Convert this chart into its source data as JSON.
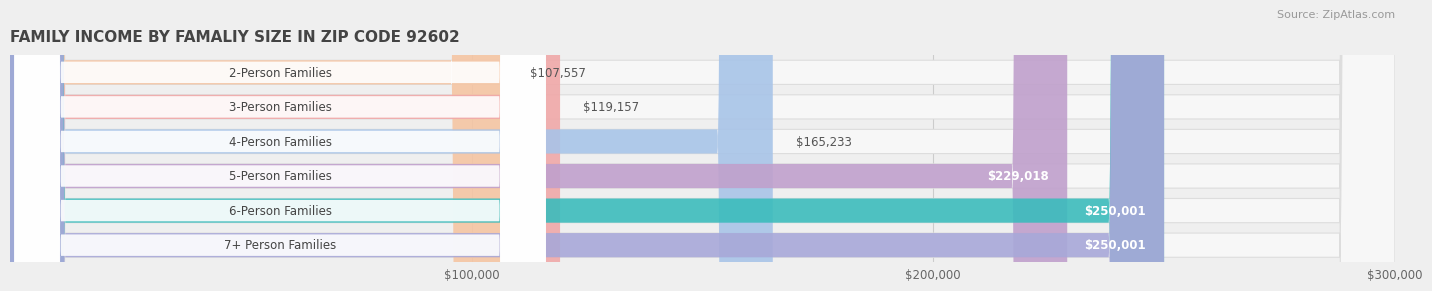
{
  "title": "FAMILY INCOME BY FAMALIY SIZE IN ZIP CODE 92602",
  "source": "Source: ZipAtlas.com",
  "categories": [
    "2-Person Families",
    "3-Person Families",
    "4-Person Families",
    "5-Person Families",
    "6-Person Families",
    "7+ Person Families"
  ],
  "values": [
    107557,
    119157,
    165233,
    229018,
    250001,
    250001
  ],
  "bar_colors": [
    "#F5C5A3",
    "#F0A8A8",
    "#A8C4E8",
    "#C0A0CC",
    "#3BBCBC",
    "#A8A8D8"
  ],
  "value_labels": [
    "$107,557",
    "$119,157",
    "$165,233",
    "$229,018",
    "$250,001",
    "$250,001"
  ],
  "xlim_max": 300000,
  "xticks": [
    100000,
    200000,
    300000
  ],
  "xtick_labels": [
    "$100,000",
    "$200,000",
    "$300,000"
  ],
  "background_color": "#efefef",
  "bar_bg_color": "#f7f7f7",
  "title_color": "#444444",
  "source_color": "#999999"
}
